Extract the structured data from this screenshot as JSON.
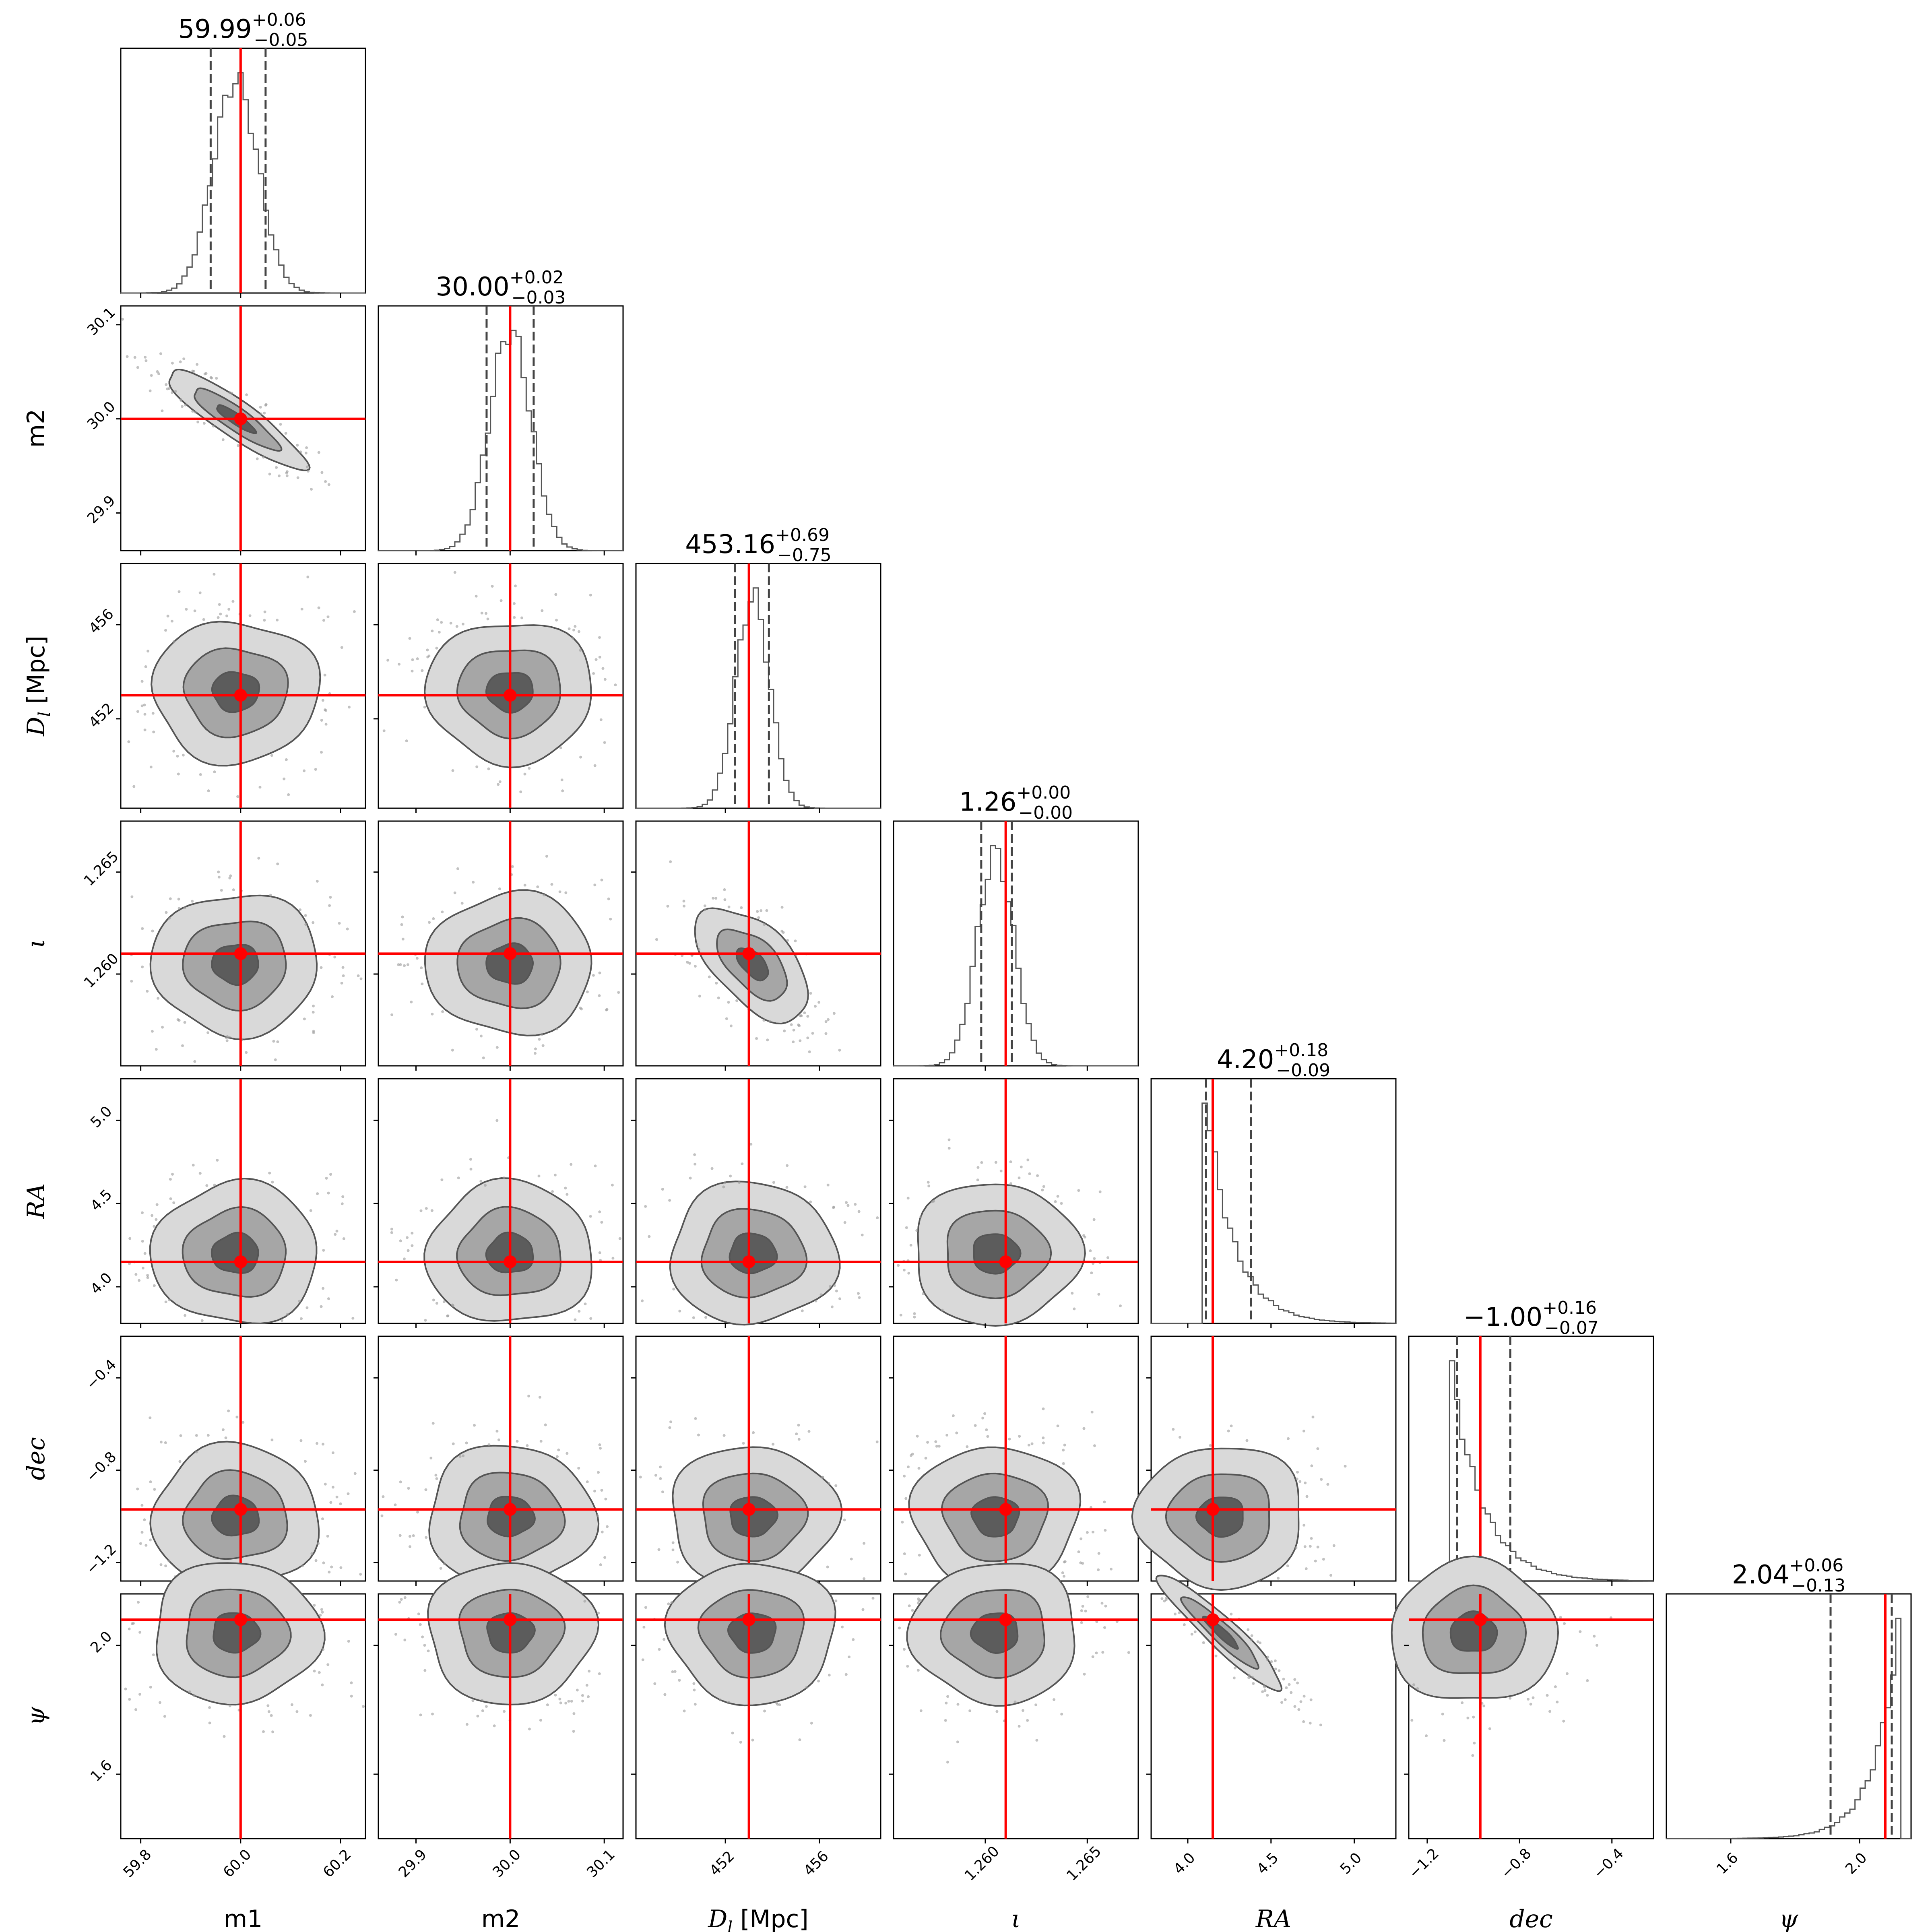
{
  "chart_data": {
    "type": "corner",
    "parameters": [
      {
        "label": "m1",
        "italic": false,
        "truth": 60.0,
        "range": [
          59.76,
          60.25
        ],
        "ticks": [
          "59.8",
          "60.0",
          "60.2"
        ],
        "tick_values": [
          59.8,
          60.0,
          60.2
        ],
        "title": {
          "median": "59.99",
          "plus": "+0.06",
          "minus": "−0.05"
        },
        "quantiles": [
          59.94,
          59.99,
          60.05
        ],
        "hist_sigma": 0.045
      },
      {
        "label": "m2",
        "italic": false,
        "truth": 30.0,
        "range": [
          29.86,
          30.12
        ],
        "ticks": [
          "29.9",
          "30.0",
          "30.1"
        ],
        "tick_values": [
          29.9,
          30.0,
          30.1
        ],
        "title": {
          "median": "30.00",
          "plus": "+0.02",
          "minus": "−0.03"
        },
        "quantiles": [
          29.975,
          30.0,
          30.025
        ],
        "hist_sigma": 0.022
      },
      {
        "label": "D_l [Mpc]",
        "label_main": "D",
        "label_sub": "l",
        "label_rest": " [Mpc]",
        "italic": true,
        "truth": 453.0,
        "range": [
          448.2,
          458.6
        ],
        "ticks": [
          "452",
          "456"
        ],
        "tick_values": [
          452,
          456
        ],
        "title": {
          "median": "453.16",
          "plus": "+0.69",
          "minus": "−0.75"
        },
        "quantiles": [
          452.41,
          453.16,
          453.85
        ],
        "hist_sigma": 0.72
      },
      {
        "label": "ι",
        "italic": true,
        "truth": 1.261,
        "range": [
          1.2555,
          1.2675
        ],
        "ticks": [
          "1.260",
          "1.265"
        ],
        "tick_values": [
          1.26,
          1.265
        ],
        "title": {
          "median": "1.26",
          "plus": "+0.00",
          "minus": "−0.00"
        },
        "quantiles": [
          1.2598,
          1.2605,
          1.2613
        ],
        "hist_sigma": 0.0009
      },
      {
        "label": "RA",
        "italic": true,
        "truth": 4.15,
        "range": [
          3.78,
          5.25
        ],
        "ticks": [
          "4.0",
          "4.5",
          "5.0"
        ],
        "tick_values": [
          4.0,
          4.5,
          5.0
        ],
        "title": {
          "median": "4.20",
          "plus": "+0.18",
          "minus": "−0.09"
        },
        "quantiles": [
          4.11,
          4.2,
          4.38
        ],
        "hist_sigma": 0.15
      },
      {
        "label": "dec",
        "italic": true,
        "truth": -0.97,
        "range": [
          -1.28,
          -0.22
        ],
        "ticks": [
          "−1.2",
          "−0.8",
          "−0.4"
        ],
        "tick_values": [
          -1.2,
          -0.8,
          -0.4
        ],
        "title": {
          "median": "−1.00",
          "plus": "+0.16",
          "minus": "−0.07"
        },
        "quantiles": [
          -1.07,
          -1.0,
          -0.84
        ],
        "hist_sigma": 0.12
      },
      {
        "label": "ψ",
        "italic": true,
        "truth": 2.08,
        "range": [
          1.4,
          2.16
        ],
        "ticks": [
          "1.6",
          "2.0"
        ],
        "tick_values": [
          1.6,
          2.0
        ],
        "title": {
          "median": "2.04",
          "plus": "+0.06",
          "minus": "−0.13"
        },
        "quantiles": [
          1.91,
          2.04,
          2.1
        ],
        "hist_sigma": 0.09
      }
    ],
    "truth_color": "#ff0000",
    "contour_fill_colors": [
      "#d9d9d9",
      "#a6a6a6",
      "#5c5c5c"
    ],
    "contour_line_color": "#555555",
    "histogram_color": "#555555",
    "quantile_line_style": "dashed",
    "grid": false
  }
}
